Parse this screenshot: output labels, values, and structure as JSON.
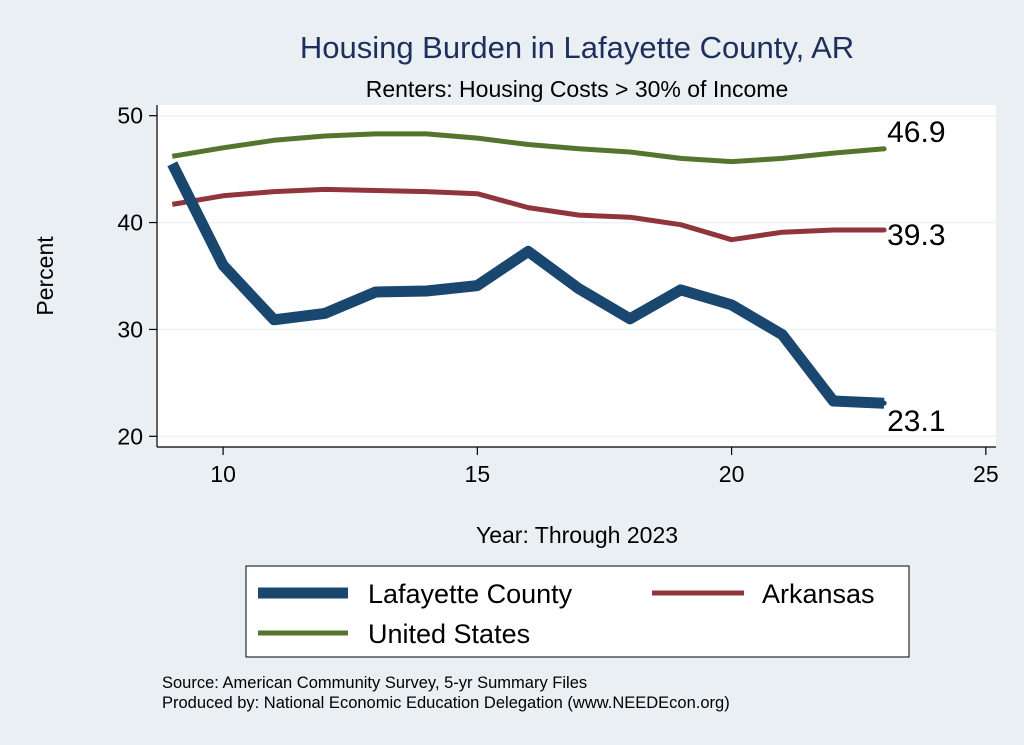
{
  "chart_data": {
    "type": "line",
    "title": "Housing Burden in Lafayette County, AR",
    "subtitle": "Renters: Housing Costs > 30% of Income",
    "xlabel": "Year: Through 2023",
    "ylabel": "Percent",
    "xlim": [
      8.7,
      25.2
    ],
    "ylim": [
      19,
      51
    ],
    "xticks": [
      10,
      15,
      20,
      25
    ],
    "yticks": [
      20,
      30,
      40,
      50
    ],
    "grid": true,
    "x": [
      9,
      10,
      11,
      12,
      13,
      14,
      15,
      16,
      17,
      18,
      19,
      20,
      21,
      22,
      23
    ],
    "series": [
      {
        "name": "Lafayette County",
        "color": "#1a476f",
        "values": [
          45.5,
          36.0,
          30.9,
          31.5,
          33.5,
          33.6,
          34.1,
          37.3,
          33.8,
          31.0,
          33.7,
          32.3,
          29.5,
          23.3,
          23.1
        ],
        "end_label": "23.1"
      },
      {
        "name": "Arkansas",
        "color": "#90353b",
        "values": [
          41.7,
          42.5,
          42.9,
          43.1,
          43.0,
          42.9,
          42.7,
          41.4,
          40.7,
          40.5,
          39.8,
          38.4,
          39.1,
          39.3,
          39.3
        ],
        "end_label": "39.3"
      },
      {
        "name": "United States",
        "color": "#55752f",
        "values": [
          46.2,
          47.0,
          47.7,
          48.1,
          48.3,
          48.3,
          47.9,
          47.3,
          46.9,
          46.6,
          46.0,
          45.7,
          46.0,
          46.5,
          46.9
        ],
        "end_label": "46.9"
      }
    ],
    "legend": [
      "Lafayette County",
      "Arkansas",
      "United States"
    ],
    "notes": [
      "Source: American Community Survey, 5-yr Summary Files",
      "Produced by: National Economic Education Delegation (www.NEEDEcon.org)"
    ]
  }
}
